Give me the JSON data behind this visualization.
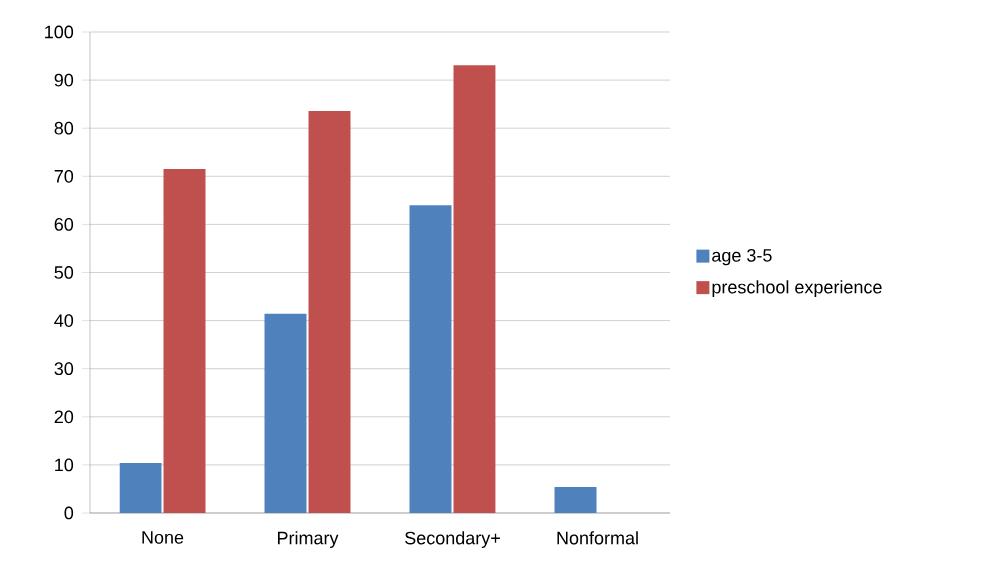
{
  "chart_data": {
    "type": "bar",
    "categories": [
      "None",
      "Primary",
      "Secondary+",
      "Nonformal"
    ],
    "series": [
      {
        "name": "age 3-5",
        "color": "#4f81bd",
        "values": [
          10.4,
          41.4,
          64.0,
          5.4
        ]
      },
      {
        "name": "preschool experience",
        "color": "#c0504d",
        "values": [
          71.5,
          83.6,
          93.1,
          null
        ]
      }
    ],
    "ylim": [
      0,
      100
    ],
    "yticks": [
      0,
      10,
      20,
      30,
      40,
      50,
      60,
      70,
      80,
      90,
      100
    ],
    "grid": "y",
    "legend": "right"
  }
}
